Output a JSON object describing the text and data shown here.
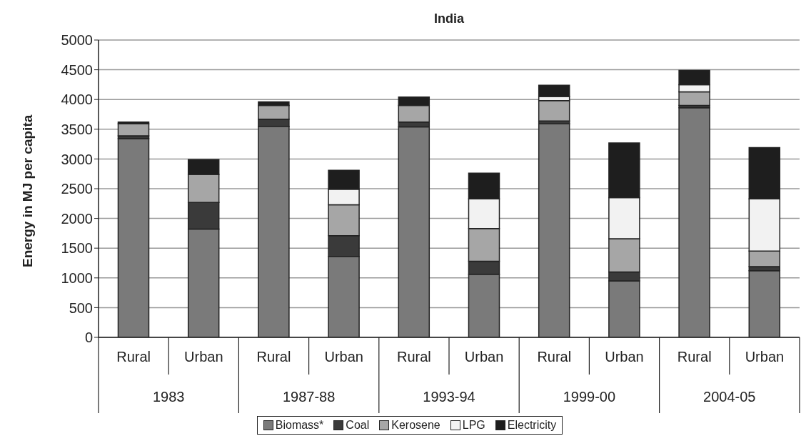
{
  "chart_data": {
    "type": "bar",
    "title": "India",
    "ylabel": "Energy in MJ per capita",
    "categories": [
      "Rural",
      "Urban",
      "Rural",
      "Urban",
      "Rural",
      "Urban",
      "Rural",
      "Urban",
      "Rural",
      "Urban"
    ],
    "annotations": [
      "1983",
      "1987-88",
      "1993-94",
      "1999-00",
      "2004-05"
    ],
    "stacked": true,
    "series": [
      {
        "name": "Biomass*",
        "color": "#7a7a7a",
        "values": [
          3340,
          1820,
          3550,
          1360,
          3540,
          1060,
          3590,
          950,
          3860,
          1120
        ]
      },
      {
        "name": "Coal",
        "color": "#3a3a3a",
        "values": [
          50,
          450,
          120,
          350,
          80,
          220,
          50,
          150,
          40,
          70
        ]
      },
      {
        "name": "Kerosene",
        "color": "#a6a6a6",
        "values": [
          200,
          470,
          230,
          520,
          280,
          550,
          340,
          560,
          230,
          260
        ]
      },
      {
        "name": "LPG",
        "color": "#f2f2f2",
        "values": [
          null,
          0,
          0,
          260,
          0,
          500,
          70,
          690,
          120,
          880
        ]
      },
      {
        "name": "Electricity",
        "color": "#1e1e1e",
        "values": [
          30,
          250,
          60,
          320,
          140,
          430,
          190,
          920,
          240,
          860
        ]
      }
    ],
    "ylim": [
      0,
      5000
    ],
    "yticks": [
      0,
      500,
      1000,
      1500,
      2000,
      2500,
      3000,
      3500,
      4000,
      4500,
      5000
    ],
    "grid": "y",
    "legend": "bottom"
  }
}
